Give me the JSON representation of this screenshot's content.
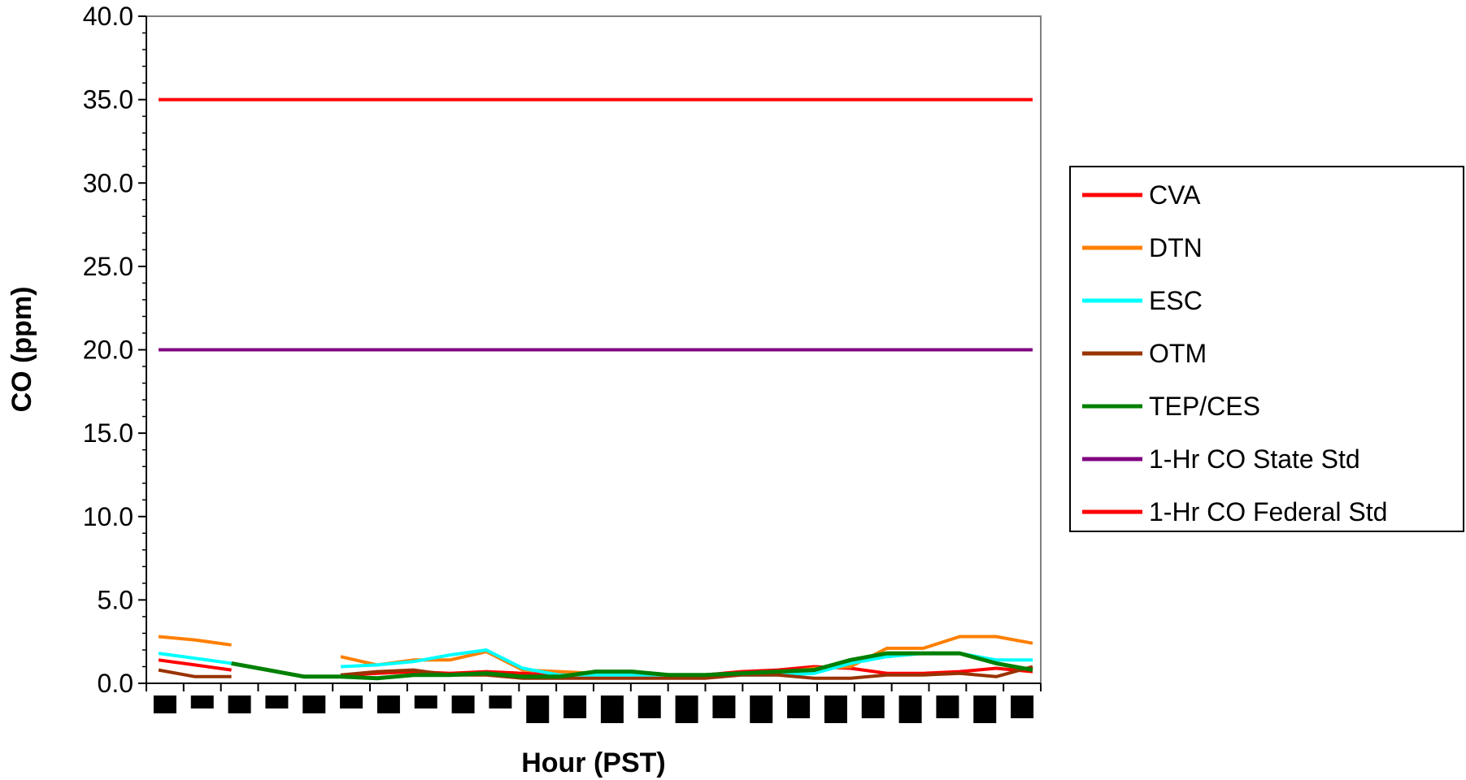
{
  "chart_data": {
    "type": "line",
    "title": "",
    "xlabel": "Hour (PST)",
    "ylabel": "CO (ppm)",
    "ylim": [
      0,
      40
    ],
    "yticks": [
      "0.0",
      "5.0",
      "10.0",
      "15.0",
      "20.0",
      "25.0",
      "30.0",
      "35.0",
      "40.0"
    ],
    "ytick_values": [
      0,
      5,
      10,
      15,
      20,
      25,
      30,
      35,
      40
    ],
    "num_hours": 24,
    "grid": false,
    "legend_position": "right",
    "series": [
      {
        "name": "CVA",
        "color": "#ff0000",
        "values": [
          1.4,
          1.1,
          0.8,
          null,
          null,
          0.5,
          0.6,
          0.7,
          0.6,
          0.7,
          0.6,
          0.5,
          0.6,
          0.6,
          0.5,
          0.5,
          0.7,
          0.8,
          1.0,
          0.9,
          0.6,
          0.6,
          0.7,
          0.9,
          0.7
        ]
      },
      {
        "name": "DTN",
        "color": "#ff7f00",
        "values": [
          2.8,
          2.6,
          2.3,
          null,
          null,
          1.6,
          1.1,
          1.4,
          1.4,
          1.9,
          0.8,
          0.7,
          0.6,
          0.6,
          0.5,
          0.5,
          0.6,
          0.6,
          0.9,
          1.0,
          2.1,
          2.1,
          2.8,
          2.8,
          2.4
        ]
      },
      {
        "name": "ESC",
        "color": "#00ffff",
        "values": [
          1.8,
          1.5,
          1.2,
          null,
          null,
          1.0,
          1.1,
          1.3,
          1.7,
          2.0,
          0.9,
          0.5,
          0.5,
          0.5,
          0.5,
          0.5,
          0.5,
          0.5,
          0.6,
          1.2,
          1.6,
          1.8,
          1.8,
          1.4,
          1.4
        ]
      },
      {
        "name": "OTM",
        "color": "#993300",
        "values": [
          0.8,
          0.4,
          0.4,
          null,
          null,
          0.5,
          0.7,
          0.8,
          0.5,
          0.5,
          0.3,
          0.3,
          0.3,
          0.3,
          0.3,
          0.3,
          0.5,
          0.5,
          0.3,
          0.3,
          0.5,
          0.5,
          0.6,
          0.4,
          1.0
        ]
      },
      {
        "name": "TEP/CES",
        "color": "#008000",
        "values": [
          null,
          null,
          1.2,
          0.8,
          0.4,
          0.4,
          0.3,
          0.5,
          0.5,
          0.6,
          0.4,
          0.4,
          0.7,
          0.7,
          0.5,
          0.5,
          0.6,
          0.7,
          0.8,
          1.4,
          1.8,
          1.8,
          1.8,
          1.2,
          0.8
        ]
      },
      {
        "name": "1-Hr CO State Std",
        "color": "#800080",
        "values": [
          20,
          20,
          20,
          20,
          20,
          20,
          20,
          20,
          20,
          20,
          20,
          20,
          20,
          20,
          20,
          20,
          20,
          20,
          20,
          20,
          20,
          20,
          20,
          20,
          20
        ]
      },
      {
        "name": "1-Hr CO Federal Std",
        "color": "#ff0000",
        "values": [
          35,
          35,
          35,
          35,
          35,
          35,
          35,
          35,
          35,
          35,
          35,
          35,
          35,
          35,
          35,
          35,
          35,
          35,
          35,
          35,
          35,
          35,
          35,
          35,
          35
        ]
      }
    ]
  }
}
